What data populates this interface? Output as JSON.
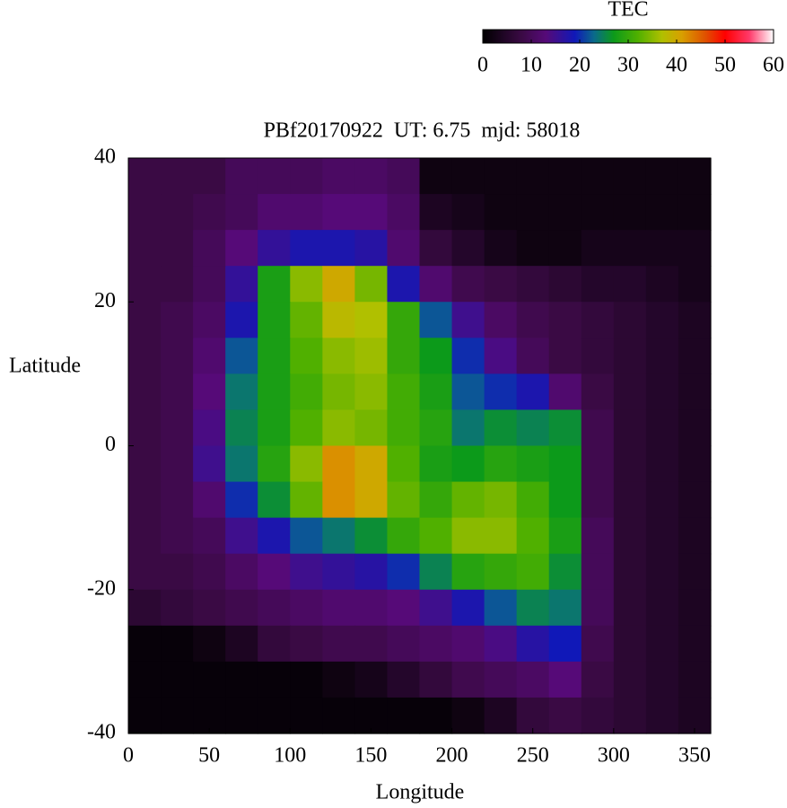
{
  "chart_data": {
    "type": "heatmap",
    "title": "PBf20170922  UT: 6.75  mjd: 58018",
    "xlabel": "Longitude",
    "ylabel": "Latitude",
    "colorbar_label": "TEC",
    "x": [
      10,
      30,
      50,
      70,
      90,
      110,
      130,
      150,
      170,
      190,
      210,
      230,
      250,
      270,
      290,
      310,
      330,
      350
    ],
    "y": [
      37.5,
      32.5,
      27.5,
      22.5,
      17.5,
      12.5,
      7.5,
      2.5,
      -2.5,
      -7.5,
      -12.5,
      -17.5,
      -22.5,
      -27.5,
      -32.5,
      -37.5
    ],
    "z": [
      [
        8,
        8,
        8,
        10,
        10,
        10,
        11,
        11,
        10,
        2,
        2,
        2,
        2,
        2,
        2,
        2,
        2,
        2
      ],
      [
        8,
        8,
        9,
        10,
        12,
        12,
        13,
        13,
        11,
        4,
        3,
        2,
        2,
        2,
        2,
        2,
        2,
        2
      ],
      [
        8,
        8,
        10,
        13,
        16,
        18,
        18,
        17,
        12,
        7,
        5,
        3,
        2,
        2,
        3,
        3,
        3,
        3
      ],
      [
        8,
        8,
        10,
        16,
        28,
        35,
        40,
        34,
        18,
        12,
        9,
        8,
        7,
        6,
        5,
        5,
        4,
        3
      ],
      [
        8,
        9,
        11,
        18,
        28,
        33,
        38,
        37,
        30,
        22,
        15,
        11,
        9,
        8,
        7,
        6,
        5,
        4
      ],
      [
        8,
        9,
        12,
        22,
        28,
        32,
        35,
        36,
        30,
        27,
        20,
        14,
        10,
        8,
        7,
        6,
        5,
        4
      ],
      [
        8,
        9,
        13,
        24,
        28,
        31,
        34,
        35,
        31,
        28,
        22,
        20,
        18,
        12,
        8,
        6,
        5,
        4
      ],
      [
        8,
        9,
        14,
        25,
        28,
        32,
        35,
        34,
        31,
        29,
        24,
        26,
        25,
        26,
        9,
        6,
        5,
        4
      ],
      [
        8,
        9,
        15,
        24,
        29,
        35,
        42,
        40,
        32,
        28,
        27,
        29,
        28,
        27,
        9,
        6,
        5,
        4
      ],
      [
        8,
        9,
        12,
        20,
        26,
        33,
        42,
        40,
        33,
        30,
        33,
        34,
        31,
        27,
        9,
        6,
        5,
        4
      ],
      [
        8,
        9,
        10,
        15,
        18,
        22,
        24,
        26,
        30,
        32,
        35,
        35,
        32,
        28,
        10,
        6,
        5,
        4
      ],
      [
        8,
        8,
        9,
        11,
        13,
        15,
        16,
        17,
        20,
        25,
        29,
        30,
        31,
        26,
        10,
        6,
        5,
        4
      ],
      [
        6,
        7,
        8,
        9,
        10,
        11,
        12,
        12,
        13,
        15,
        18,
        22,
        25,
        24,
        10,
        6,
        5,
        4
      ],
      [
        1,
        1,
        2,
        4,
        7,
        8,
        9,
        9,
        10,
        11,
        12,
        14,
        17,
        19,
        9,
        6,
        5,
        4
      ],
      [
        1,
        1,
        1,
        1,
        1,
        1,
        2,
        3,
        5,
        7,
        9,
        10,
        11,
        13,
        8,
        6,
        5,
        4
      ],
      [
        1,
        1,
        1,
        1,
        1,
        1,
        1,
        1,
        1,
        1,
        2,
        4,
        7,
        8,
        7,
        6,
        5,
        4
      ]
    ],
    "cell_size": [
      20,
      5
    ],
    "xlim": [
      0,
      360
    ],
    "xticks": [
      0,
      50,
      100,
      150,
      200,
      250,
      300,
      350
    ],
    "ylim": [
      -40,
      40
    ],
    "yticks": [
      -40,
      -20,
      0,
      20,
      40
    ],
    "clim": [
      0,
      60
    ],
    "cticks": [
      0,
      10,
      20,
      30,
      40,
      50,
      60
    ],
    "colormap": [
      [
        0,
        "#000000"
      ],
      [
        8,
        "#3a0a44"
      ],
      [
        13,
        "#560a78"
      ],
      [
        19,
        "#1018b8"
      ],
      [
        23,
        "#0a6a8a"
      ],
      [
        27,
        "#0c9a1a"
      ],
      [
        32,
        "#50b000"
      ],
      [
        37,
        "#b0c000"
      ],
      [
        41,
        "#d8a000"
      ],
      [
        46,
        "#e05000"
      ],
      [
        50,
        "#ff0000"
      ],
      [
        55,
        "#ff3a6a"
      ],
      [
        60,
        "#ffffff"
      ]
    ]
  }
}
